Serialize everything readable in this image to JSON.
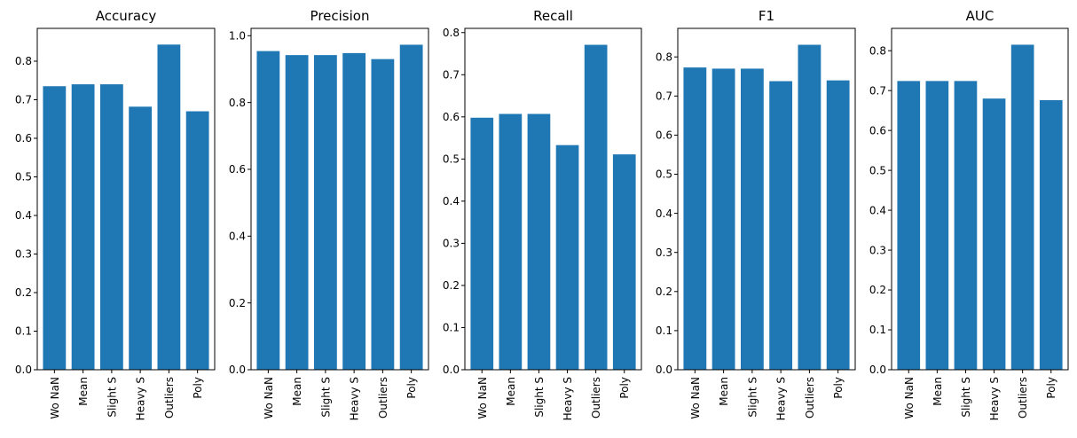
{
  "figure": {
    "background": "#ffffff"
  },
  "chart_data": [
    {
      "type": "bar",
      "title": "Accuracy",
      "categories": [
        "Wo NaN",
        "Mean",
        "Slight S",
        "Heavy S",
        "Outliers",
        "Poly"
      ],
      "values": [
        0.735,
        0.74,
        0.74,
        0.682,
        0.843,
        0.67
      ],
      "ylim": [
        0,
        0.885
      ],
      "yticks": [
        0.0,
        0.1,
        0.2,
        0.3,
        0.4,
        0.5,
        0.6,
        0.7,
        0.8
      ],
      "ytick_labels": [
        "0.0",
        "0.1",
        "0.2",
        "0.3",
        "0.4",
        "0.5",
        "0.6",
        "0.7",
        "0.8"
      ],
      "xlabel": "",
      "ylabel": "",
      "grid": false,
      "bar_color": "#1f77b4"
    },
    {
      "type": "bar",
      "title": "Precision",
      "categories": [
        "Wo NaN",
        "Mean",
        "Slight S",
        "Heavy S",
        "Outliers",
        "Poly"
      ],
      "values": [
        0.954,
        0.942,
        0.942,
        0.948,
        0.93,
        0.973
      ],
      "ylim": [
        0,
        1.022
      ],
      "yticks": [
        0.0,
        0.2,
        0.4,
        0.6,
        0.8,
        1.0
      ],
      "ytick_labels": [
        "0.0",
        "0.2",
        "0.4",
        "0.6",
        "0.8",
        "1.0"
      ],
      "xlabel": "",
      "ylabel": "",
      "grid": false,
      "bar_color": "#1f77b4"
    },
    {
      "type": "bar",
      "title": "Recall",
      "categories": [
        "Wo NaN",
        "Mean",
        "Slight S",
        "Heavy S",
        "Outliers",
        "Poly"
      ],
      "values": [
        0.598,
        0.607,
        0.607,
        0.533,
        0.771,
        0.511
      ],
      "ylim": [
        0,
        0.81
      ],
      "yticks": [
        0.0,
        0.1,
        0.2,
        0.3,
        0.4,
        0.5,
        0.6,
        0.7,
        0.8
      ],
      "ytick_labels": [
        "0.0",
        "0.1",
        "0.2",
        "0.3",
        "0.4",
        "0.5",
        "0.6",
        "0.7",
        "0.8"
      ],
      "xlabel": "",
      "ylabel": "",
      "grid": false,
      "bar_color": "#1f77b4"
    },
    {
      "type": "bar",
      "title": "F1",
      "categories": [
        "Wo NaN",
        "Mean",
        "Slight S",
        "Heavy S",
        "Outliers",
        "Poly"
      ],
      "values": [
        0.773,
        0.77,
        0.77,
        0.738,
        0.831,
        0.74
      ],
      "ylim": [
        0,
        0.873
      ],
      "yticks": [
        0.0,
        0.1,
        0.2,
        0.3,
        0.4,
        0.5,
        0.6,
        0.7,
        0.8
      ],
      "ytick_labels": [
        "0.0",
        "0.1",
        "0.2",
        "0.3",
        "0.4",
        "0.5",
        "0.6",
        "0.7",
        "0.8"
      ],
      "xlabel": "",
      "ylabel": "",
      "grid": false,
      "bar_color": "#1f77b4"
    },
    {
      "type": "bar",
      "title": "AUC",
      "categories": [
        "Wo NaN",
        "Mean",
        "Slight S",
        "Heavy S",
        "Outliers",
        "Poly"
      ],
      "values": [
        0.724,
        0.724,
        0.724,
        0.68,
        0.815,
        0.676
      ],
      "ylim": [
        0,
        0.856
      ],
      "yticks": [
        0.0,
        0.1,
        0.2,
        0.3,
        0.4,
        0.5,
        0.6,
        0.7,
        0.8
      ],
      "ytick_labels": [
        "0.0",
        "0.1",
        "0.2",
        "0.3",
        "0.4",
        "0.5",
        "0.6",
        "0.7",
        "0.8"
      ],
      "xlabel": "",
      "ylabel": "",
      "grid": false,
      "bar_color": "#1f77b4"
    }
  ]
}
